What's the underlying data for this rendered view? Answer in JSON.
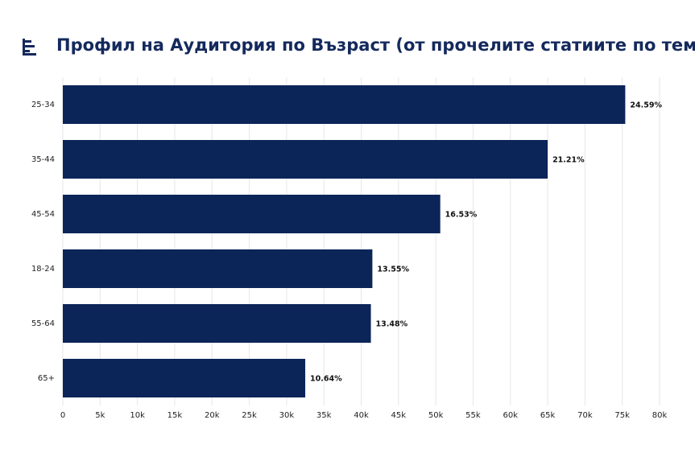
{
  "chart_data": {
    "type": "hbar",
    "title": "Профил на Аудитория по Възраст (от прочелите статиите по темата)",
    "categories": [
      "25-34",
      "35-44",
      "45-54",
      "18-24",
      "55-64",
      "65+"
    ],
    "values": [
      75400,
      65000,
      50600,
      41500,
      41300,
      32500
    ],
    "data_labels": [
      "24.59%",
      "21.21%",
      "16.53%",
      "13.55%",
      "13.48%",
      "10.64%"
    ],
    "color": "#0b2559",
    "xlim": [
      0,
      80000
    ],
    "xticks": [
      0,
      {
        "value": 5000,
        "label": "5k"
      },
      {
        "value": 10000,
        "label": "10k"
      },
      {
        "value": 15000,
        "label": "15k"
      },
      {
        "value": 20000,
        "label": "20k"
      },
      {
        "value": 25000,
        "label": "25k"
      },
      {
        "value": 30000,
        "label": "30k"
      },
      {
        "value": 35000,
        "label": "35k"
      },
      {
        "value": 40000,
        "label": "40k"
      },
      {
        "value": 45000,
        "label": "45k"
      },
      {
        "value": 50000,
        "label": "50k"
      },
      {
        "value": 55000,
        "label": "55k"
      },
      {
        "value": 60000,
        "label": "60k"
      },
      {
        "value": 65000,
        "label": "65k"
      },
      {
        "value": 70000,
        "label": "70k"
      },
      {
        "value": 75000,
        "label": "75k"
      },
      {
        "value": 80000,
        "label": "80k"
      }
    ],
    "grid": true
  }
}
